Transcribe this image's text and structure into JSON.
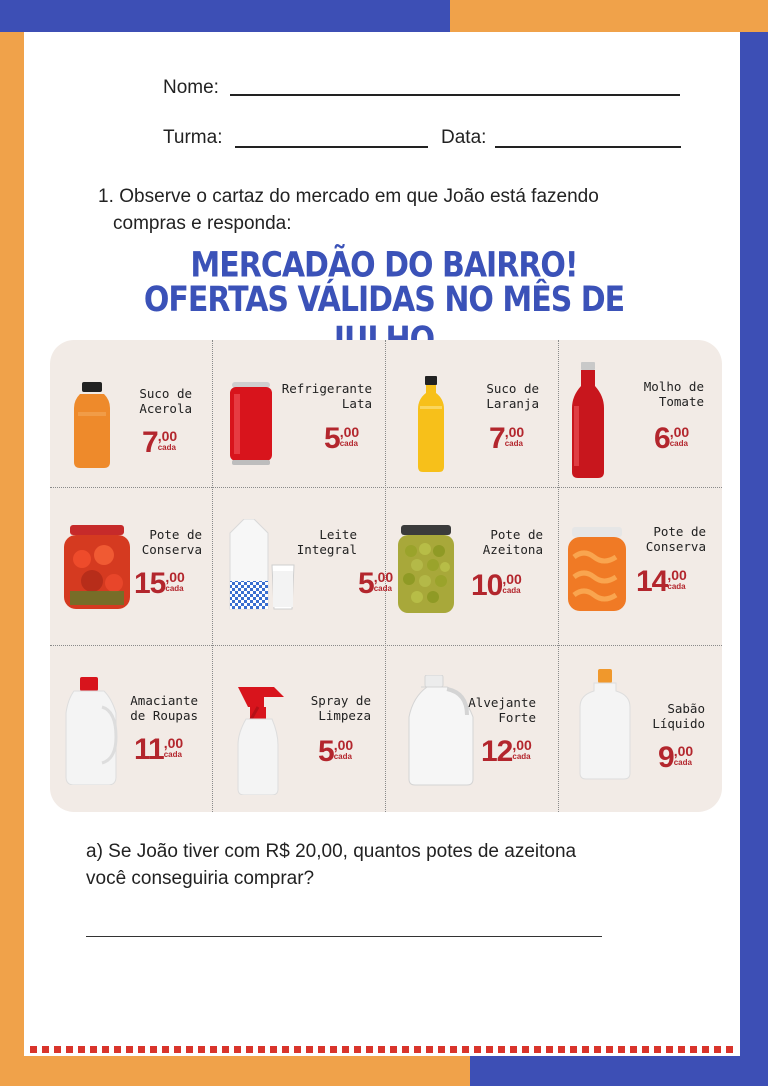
{
  "colors": {
    "blue": "#3d4fb5",
    "orange": "#f0a24a",
    "price_red": "#b3262d",
    "poster_bg": "#f2ebe6"
  },
  "form": {
    "name_label": "Nome:",
    "class_label": "Turma:",
    "date_label": "Data:"
  },
  "question": {
    "number": "1.",
    "text_line1": "Observe o cartaz do mercado em que João está fazendo",
    "text_line2": "compras  e responda:"
  },
  "poster": {
    "title_line1": "MERCADÃO DO BAIRRO!",
    "title_line2": "OFERTAS VÁLIDAS NO MÊS DE JULHO",
    "cada_label": "cada",
    "products": [
      {
        "name": "Suco de\nAcerola",
        "price": "7",
        "cents": ",00",
        "icon": "juice-bottle-icon"
      },
      {
        "name": "Refrigerante\nLata",
        "price": "5",
        "cents": ",00",
        "icon": "soda-can-icon"
      },
      {
        "name": "Suco de\nLaranja",
        "price": "7",
        "cents": ",00",
        "icon": "juice-bottle-icon"
      },
      {
        "name": "Molho de\nTomate",
        "price": "6",
        "cents": ",00",
        "icon": "sauce-bottle-icon"
      },
      {
        "name": "Pote de\nConserva",
        "price": "15",
        "cents": ",00",
        "icon": "preserve-jar-icon"
      },
      {
        "name": "Leite\nIntegral",
        "price": "5",
        "cents": ",00",
        "icon": "milk-carton-icon"
      },
      {
        "name": "Pote de\nAzeitona",
        "price": "10",
        "cents": ",00",
        "icon": "olive-jar-icon"
      },
      {
        "name": "Pote de\nConserva",
        "price": "14",
        "cents": ",00",
        "icon": "peach-jar-icon"
      },
      {
        "name": "Amaciante\nde Roupas",
        "price": "11",
        "cents": ",00",
        "icon": "softener-bottle-icon"
      },
      {
        "name": "Spray de\nLimpeza",
        "price": "5",
        "cents": ",00",
        "icon": "spray-bottle-icon"
      },
      {
        "name": "Alvejante\nForte",
        "price": "12",
        "cents": ",00",
        "icon": "bleach-jug-icon"
      },
      {
        "name": "Sabão\nLíquido",
        "price": "9",
        "cents": ",00",
        "icon": "soap-bottle-icon"
      }
    ]
  },
  "subquestion": {
    "line1": "a) Se João tiver com R$ 20,00, quantos potes de azeitona",
    "line2": "você conseguiria comprar?"
  }
}
